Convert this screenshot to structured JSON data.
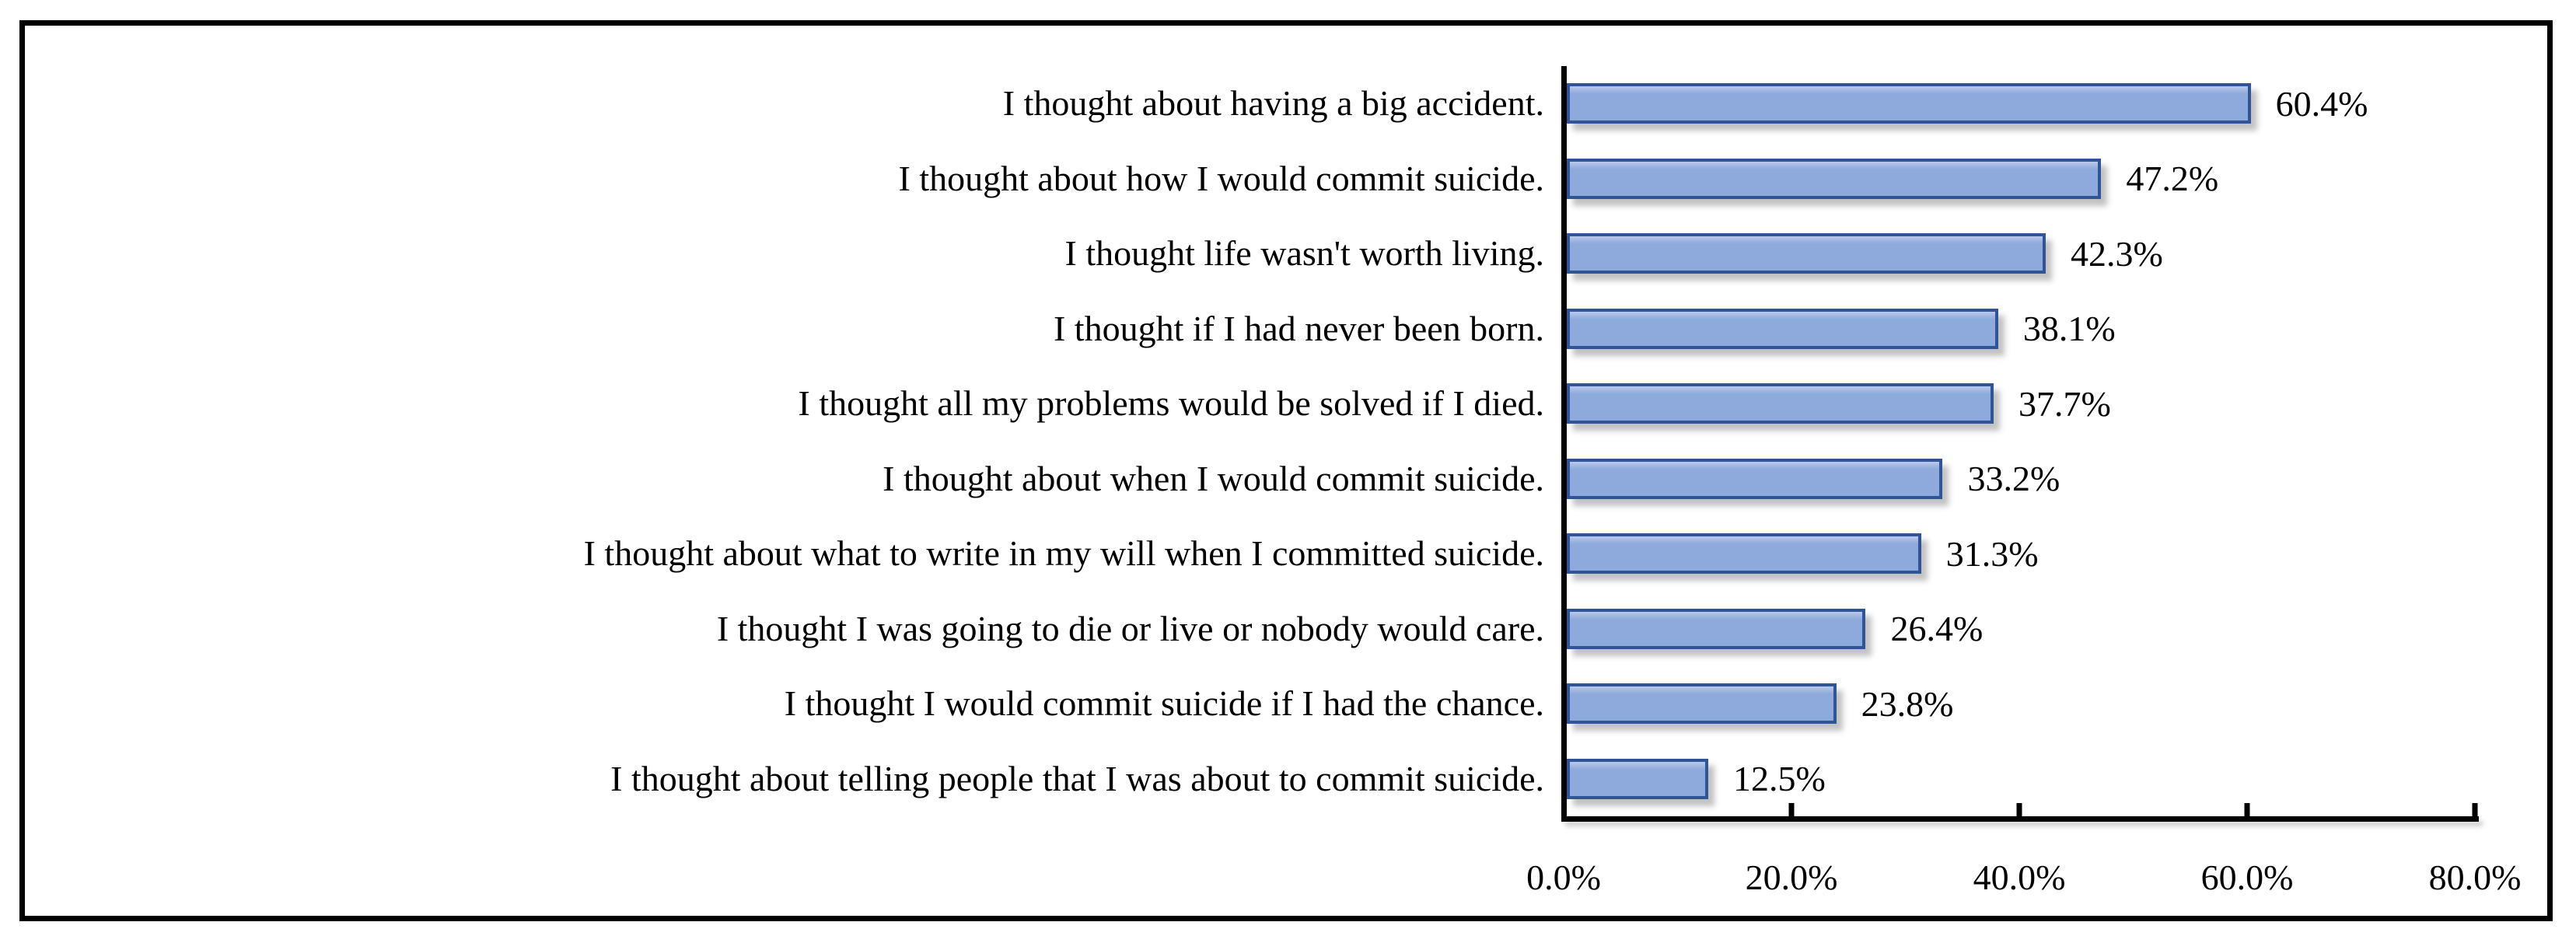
{
  "figure": {
    "background_color": "#FFFFFF",
    "border_color": "#000000"
  },
  "chart_data": {
    "type": "bar",
    "orientation": "horizontal",
    "title": "",
    "xlabel": "",
    "ylabel": "",
    "grid": "off",
    "legend": "none",
    "categories": [
      "I thought about having a big accident.",
      "I thought about how I would commit suicide.",
      "I thought life wasn't worth living.",
      "I thought if I had never been born.",
      "I thought all my problems would be solved if I died.",
      "I thought about when I would commit suicide.",
      "I thought about what to write in my will when I committed suicide.",
      "I thought I was going to die or live or nobody would care.",
      "I thought I would commit suicide if I had the chance.",
      "I thought about telling people that I was about to commit suicide."
    ],
    "values": [
      60.4,
      47.2,
      42.3,
      38.1,
      37.7,
      33.2,
      31.3,
      26.4,
      23.8,
      12.5
    ],
    "data_labels": [
      "60.4%",
      "47.2%",
      "42.3%",
      "38.1%",
      "37.7%",
      "33.2%",
      "31.3%",
      "26.4%",
      "23.8%",
      "12.5%"
    ],
    "xlim": [
      0,
      80
    ],
    "x_tick_values": [
      0,
      20,
      40,
      60,
      80
    ],
    "x_tick_labels": [
      "0.0%",
      "20.0%",
      "40.0%",
      "60.0%",
      "80.0%"
    ],
    "bar_fill_color": "#8EA9DB",
    "bar_border_color": "#2F5597",
    "axis_color": "#000000"
  }
}
